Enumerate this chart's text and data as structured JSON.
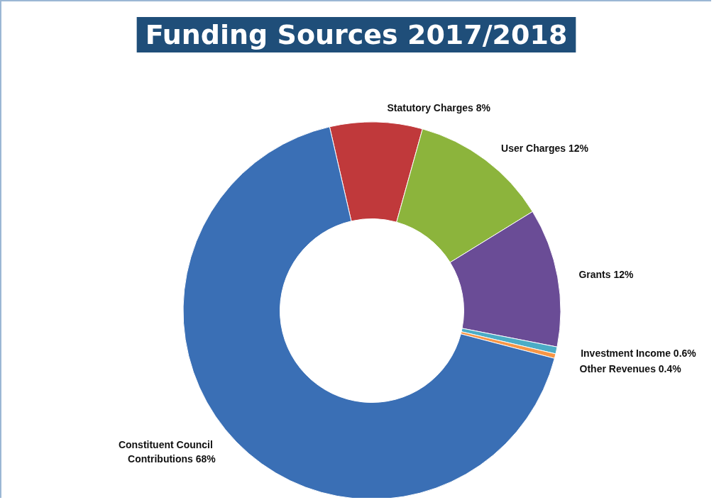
{
  "chart_data": {
    "type": "donut",
    "title": "Funding Sources 2017/2018",
    "categories": [
      "Statutory Charges",
      "User Charges",
      "Grants",
      "Investment Income",
      "Other Revenues",
      "Constituent Council Contributions"
    ],
    "values": [
      8,
      12,
      12,
      0.6,
      0.4,
      68
    ],
    "colors": [
      "#c0393b",
      "#8cb43c",
      "#6a4c96",
      "#4bacc6",
      "#f79646",
      "#3a6fb5"
    ],
    "value_labels": [
      "8%",
      "12%",
      "12%",
      "0.6%",
      "0.4%",
      "68%"
    ],
    "legend": false
  }
}
